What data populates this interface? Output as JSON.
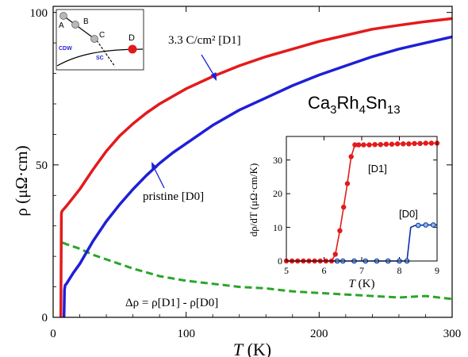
{
  "colors": {
    "d1": "#e31a1c",
    "d0": "#1f1fd6",
    "delta": "#2aa52a",
    "inset_d0": "#0b2fa8",
    "marker_fill": "#86bde8",
    "dot_gray": "#b8b8b8"
  },
  "chart_data": [
    {
      "type": "line",
      "x_axis": {
        "var": "T",
        "unit": " (K)",
        "range": [
          0,
          300
        ],
        "ticks": [
          "0",
          "100",
          "200",
          "300"
        ]
      },
      "y_axis": {
        "var": "ρ",
        "unit": " (μΩ·cm)",
        "range": [
          0,
          102
        ],
        "ticks": [
          "0",
          "50",
          "100"
        ]
      },
      "annotations": {
        "material": "Ca3Rh4Sn13",
        "label_d1": "3.3 C/cm² [D1]",
        "label_d0": "pristine [D0]",
        "label_delta": "Δρ = ρ[D1] - ρ[D0]"
      },
      "series": [
        {
          "name": "3.3 C/cm² [D1]",
          "x": [
            5.8,
            6.0,
            6.2,
            6.4,
            7,
            10,
            20,
            30,
            40,
            50,
            60,
            70,
            80,
            90,
            100,
            120,
            140,
            160,
            180,
            200,
            220,
            240,
            260,
            280,
            300
          ],
          "y": [
            0,
            20,
            34,
            34.5,
            35,
            36.5,
            42,
            48.5,
            54.5,
            59.5,
            63.5,
            67,
            70,
            72.5,
            75,
            79,
            82.5,
            85.5,
            88,
            90.5,
            92.5,
            94.5,
            95.8,
            97,
            98
          ]
        },
        {
          "name": "pristine [D0]",
          "x": [
            8.2,
            8.5,
            9,
            10,
            15,
            20,
            30,
            40,
            50,
            60,
            70,
            80,
            90,
            100,
            120,
            140,
            160,
            180,
            200,
            220,
            240,
            260,
            280,
            300
          ],
          "y": [
            0,
            9,
            10.5,
            11,
            14.5,
            17.5,
            25,
            31.5,
            37,
            42,
            46.5,
            50.5,
            54,
            57,
            63,
            68,
            72,
            76,
            79.5,
            82.5,
            85.5,
            88,
            90,
            92
          ]
        },
        {
          "name": "Δρ = ρ[D1] - ρ[D0]",
          "x": [
            7,
            10,
            20,
            30,
            40,
            50,
            60,
            80,
            100,
            120,
            140,
            160,
            180,
            200,
            220,
            240,
            260,
            280,
            300
          ],
          "y": [
            24.5,
            24,
            22.5,
            20.5,
            19,
            17.5,
            16,
            13.5,
            12,
            11,
            10,
            9.5,
            8.5,
            8,
            7.5,
            7,
            6.5,
            7,
            6
          ]
        }
      ]
    },
    {
      "type": "line",
      "x_axis": {
        "var": "T",
        "unit": " (K)",
        "range": [
          5,
          9
        ],
        "ticks": [
          "5",
          "6",
          "7",
          "8",
          "9"
        ]
      },
      "y_axis": {
        "label": "dρ/dT (μΩ·cm/K)",
        "range": [
          0,
          37
        ],
        "ticks": [
          "0",
          "10",
          "20",
          "30"
        ]
      },
      "series": [
        {
          "name": "[D1]",
          "x": [
            5.0,
            5.15,
            5.3,
            5.45,
            5.6,
            5.75,
            5.9,
            6.05,
            6.2,
            6.3,
            6.42,
            6.52,
            6.62,
            6.72,
            6.82,
            6.92,
            7.05,
            7.2,
            7.35,
            7.5,
            7.65,
            7.8,
            7.95,
            8.1,
            8.25,
            8.4,
            8.55,
            8.7,
            8.85,
            9.0
          ],
          "y": [
            0,
            0,
            0,
            0,
            0,
            0,
            0,
            0,
            0,
            2,
            9,
            16,
            23,
            31,
            34.5,
            34.5,
            34.5,
            34.5,
            34.6,
            34.6,
            34.7,
            34.7,
            34.8,
            34.8,
            34.8,
            34.9,
            34.9,
            35,
            35,
            35
          ]
        },
        {
          "name": "[D0]",
          "x": [
            5,
            6,
            6.35,
            6.5,
            6.8,
            7.1,
            7.4,
            7.7,
            8.0,
            8.2,
            8.25,
            8.3,
            8.4,
            8.5,
            8.7,
            8.9,
            9.0
          ],
          "y": [
            0,
            0,
            0,
            0,
            0,
            0,
            0,
            0,
            0,
            0,
            5,
            10,
            10.5,
            10.6,
            10.7,
            10.7,
            10.7
          ],
          "markers_x": [
            6.35,
            6.5,
            6.8,
            7.1,
            7.4,
            7.7,
            8.0,
            8.2,
            8.5,
            8.7,
            8.9
          ],
          "markers_y": [
            0,
            0,
            0,
            0,
            0,
            0,
            0,
            0,
            10.6,
            10.7,
            10.7
          ]
        }
      ]
    }
  ],
  "phase_diagram": {
    "points": [
      "A",
      "B",
      "C",
      "D"
    ],
    "cdw_label": "CDW",
    "sc_label": "SC"
  }
}
